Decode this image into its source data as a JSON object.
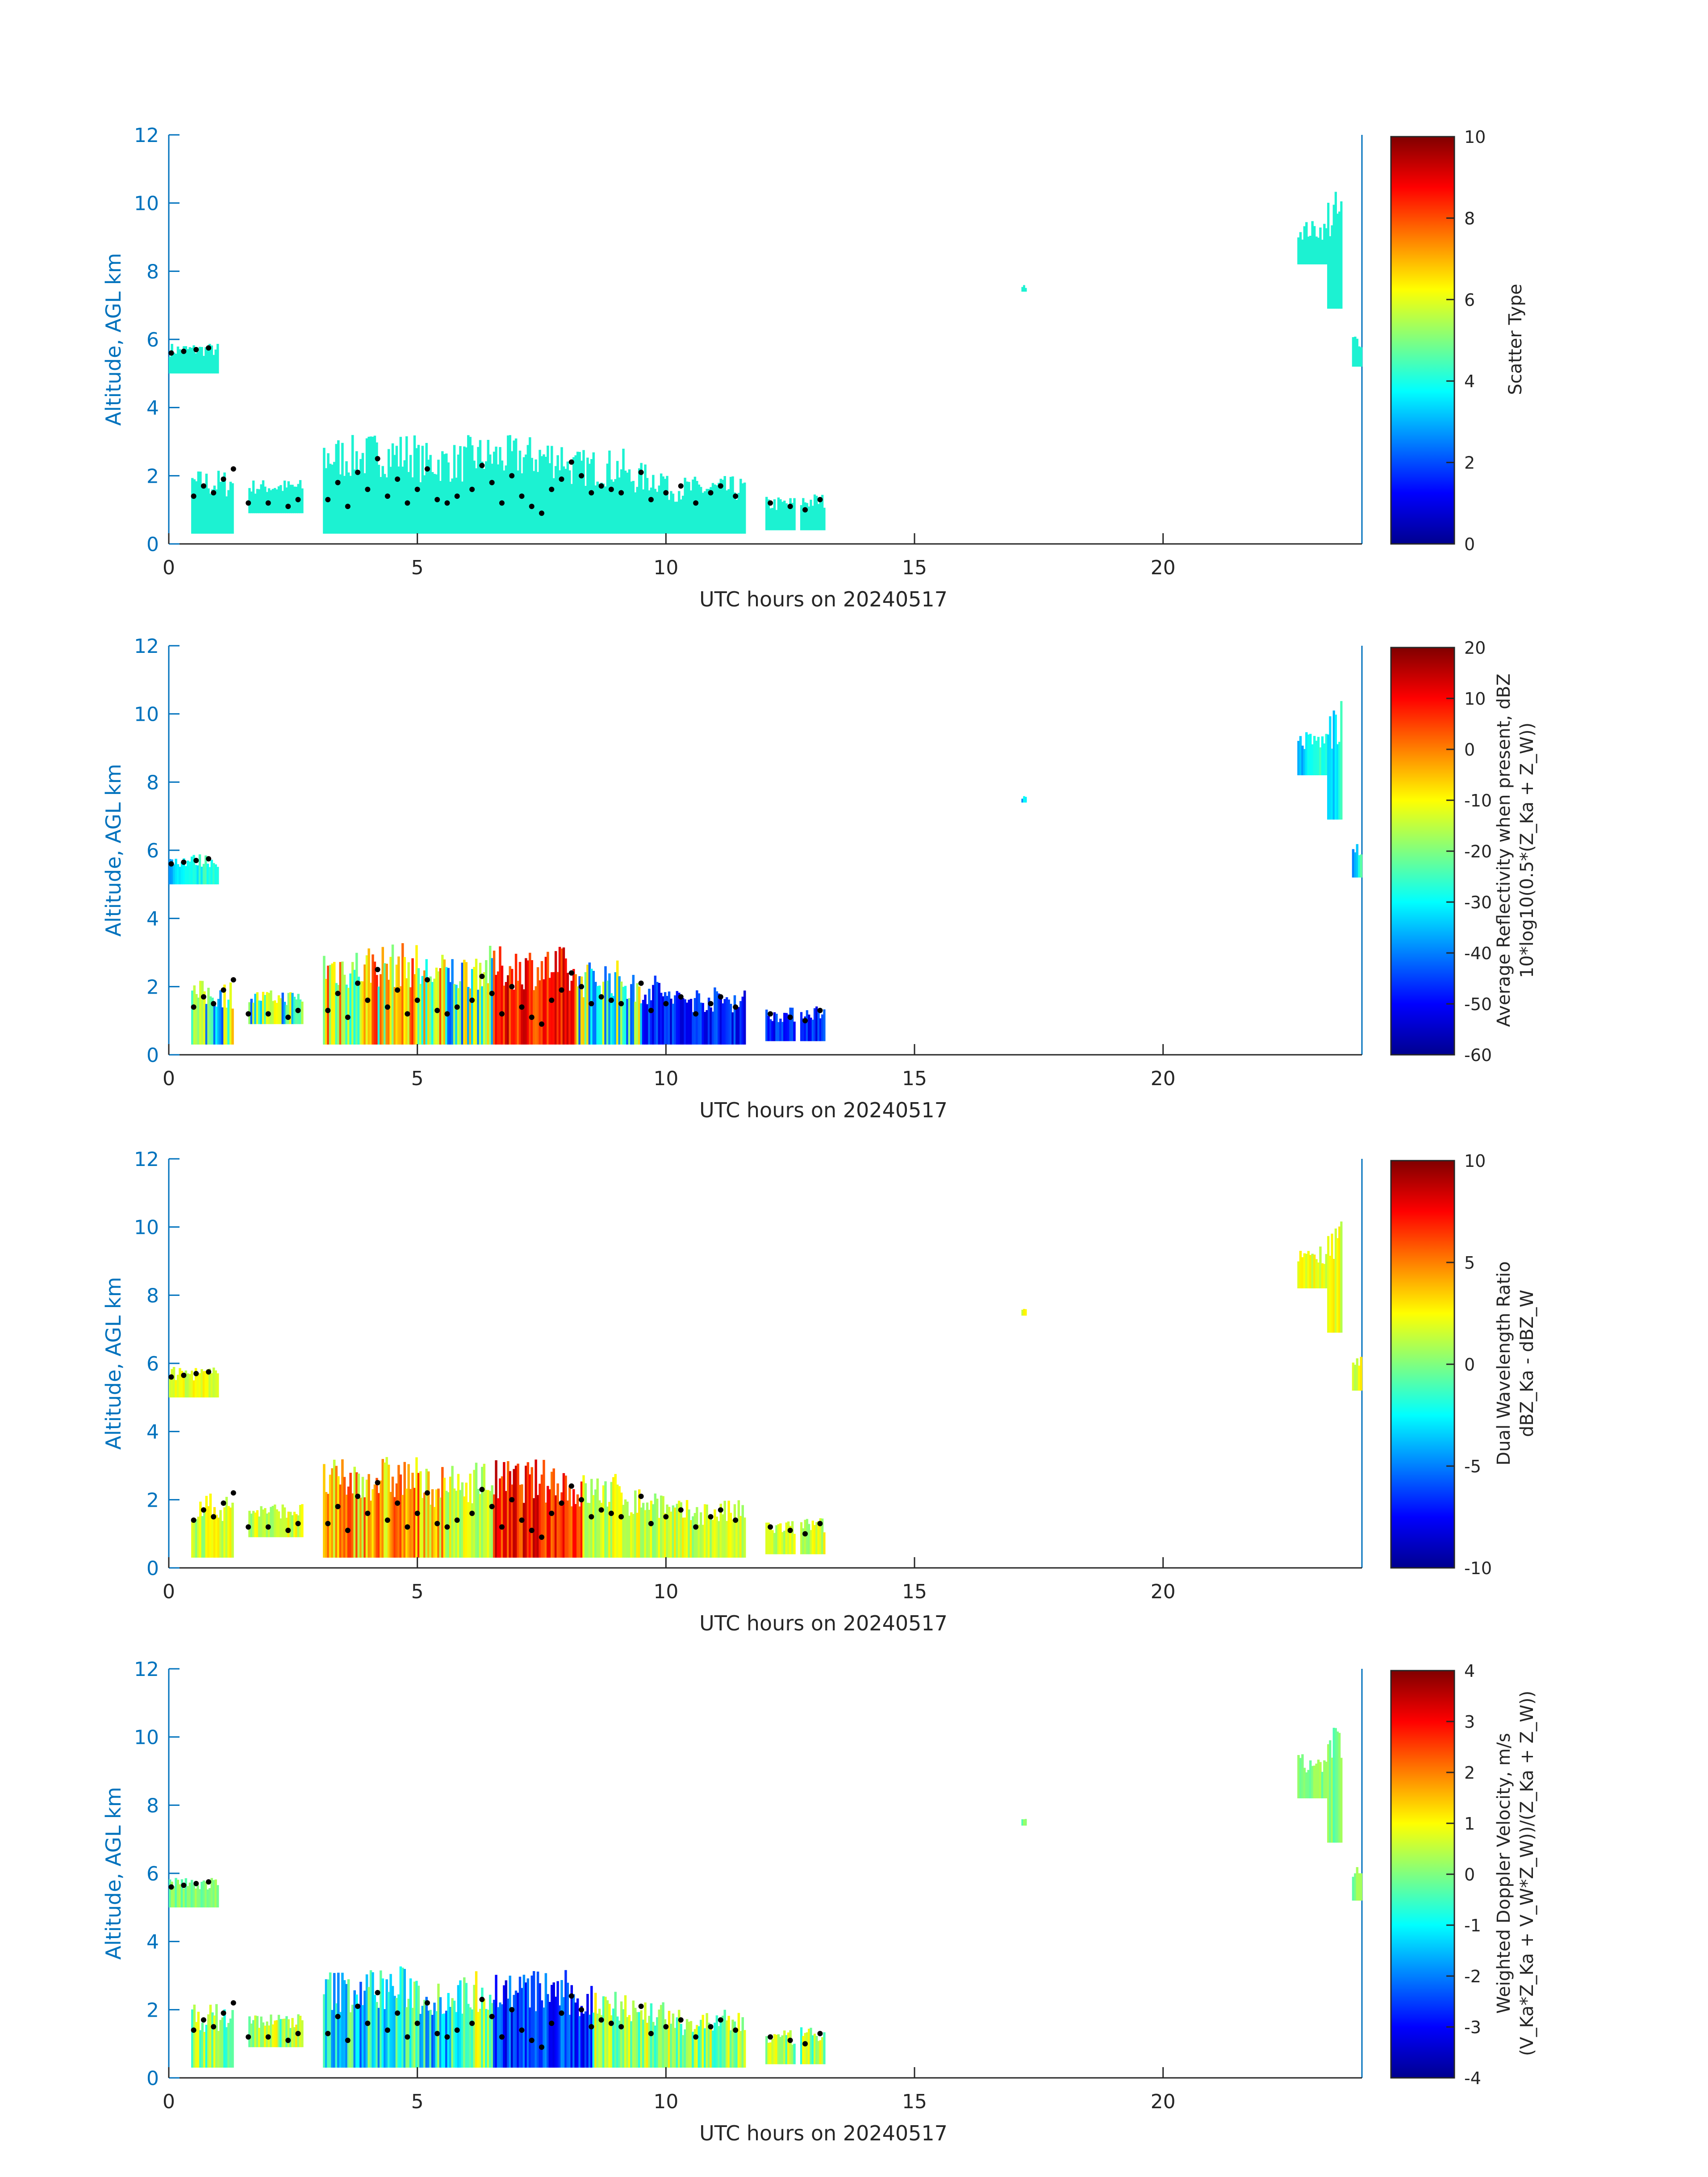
{
  "colors": {
    "axis_blue": "#0072BD",
    "axis_text": "#262626",
    "scatter_type_cloud": "#1CF2D2",
    "scatter_type_precip": "#E8501A",
    "mlh_points": "#000000"
  },
  "chart_data": [
    {
      "type": "heatmap",
      "name": "scatter-type",
      "xlabel": "UTC hours on 20240517",
      "ylabel": "Altitude, AGL km",
      "xlim": [
        0,
        24
      ],
      "ylim": [
        0,
        12
      ],
      "xticks": [
        0,
        5,
        10,
        15,
        20
      ],
      "yticks": [
        0,
        2,
        4,
        6,
        8,
        10,
        12
      ],
      "colorbar": {
        "label": [
          "Scatter Type"
        ],
        "colormap": "jet",
        "clim": [
          0,
          10
        ],
        "ticks": [
          0,
          2,
          4,
          6,
          8,
          10
        ]
      }
    },
    {
      "type": "heatmap",
      "name": "average-reflectivity",
      "xlabel": "UTC hours on 20240517",
      "ylabel": "Altitude, AGL km",
      "xlim": [
        0,
        24
      ],
      "ylim": [
        0,
        12
      ],
      "xticks": [
        0,
        5,
        10,
        15,
        20
      ],
      "yticks": [
        0,
        2,
        4,
        6,
        8,
        10,
        12
      ],
      "colorbar": {
        "label": [
          "Average Reflectivity when present, dBZ",
          "10*log10(0.5*(Z_Ka + Z_W))"
        ],
        "colormap": "jet",
        "clim": [
          -60,
          20
        ],
        "ticks": [
          -60,
          -50,
          -40,
          -30,
          -20,
          -10,
          0,
          10,
          20
        ]
      }
    },
    {
      "type": "heatmap",
      "name": "dual-wavelength-ratio",
      "xlabel": "UTC hours on 20240517",
      "ylabel": "Altitude, AGL km",
      "xlim": [
        0,
        24
      ],
      "ylim": [
        0,
        12
      ],
      "xticks": [
        0,
        5,
        10,
        15,
        20
      ],
      "yticks": [
        0,
        2,
        4,
        6,
        8,
        10,
        12
      ],
      "colorbar": {
        "label": [
          "Dual Wavelength Ratio",
          "dBZ_Ka - dBZ_W"
        ],
        "colormap": "jet",
        "clim": [
          -10,
          10
        ],
        "ticks": [
          -10,
          -5,
          0,
          5,
          10
        ]
      }
    },
    {
      "type": "heatmap",
      "name": "weighted-doppler-velocity",
      "xlabel": "UTC hours on 20240517",
      "ylabel": "Altitude, AGL km",
      "xlim": [
        0,
        24
      ],
      "ylim": [
        0,
        12
      ],
      "xticks": [
        0,
        5,
        10,
        15,
        20
      ],
      "yticks": [
        0,
        2,
        4,
        6,
        8,
        10,
        12
      ],
      "colorbar": {
        "label": [
          "Weighted Doppler Velocity, m/s",
          "(V_Ka*Z_Ka + V_W*Z_W))/(Z_Ka + Z_W))"
        ],
        "colormap": "jet",
        "clim": [
          -4,
          4
        ],
        "ticks": [
          -4,
          -3,
          -2,
          -1,
          0,
          1,
          2,
          3,
          4
        ]
      }
    }
  ],
  "observations": {
    "cloud_regions": [
      {
        "t0": 0.0,
        "t1": 1.0,
        "z0": 5.0,
        "z1": 5.9
      },
      {
        "t0": 0.45,
        "t1": 1.3,
        "z0": 0.3,
        "z1": 2.2
      },
      {
        "t0": 1.6,
        "t1": 2.7,
        "z0": 0.9,
        "z1": 1.9
      },
      {
        "t0": 3.1,
        "t1": 4.0,
        "z0": 0.3,
        "z1": 3.2
      },
      {
        "t0": 4.0,
        "t1": 5.0,
        "z0": 0.3,
        "z1": 3.3
      },
      {
        "t0": 5.0,
        "t1": 6.0,
        "z0": 0.3,
        "z1": 3.0
      },
      {
        "t0": 6.0,
        "t1": 8.0,
        "z0": 0.3,
        "z1": 3.2
      },
      {
        "t0": 8.0,
        "t1": 9.2,
        "z0": 0.3,
        "z1": 2.8
      },
      {
        "t0": 9.2,
        "t1": 10.0,
        "z0": 0.3,
        "z1": 2.4
      },
      {
        "t0": 10.0,
        "t1": 11.6,
        "z0": 0.3,
        "z1": 2.0
      },
      {
        "t0": 12.0,
        "t1": 12.6,
        "z0": 0.4,
        "z1": 1.4
      },
      {
        "t0": 12.7,
        "t1": 13.2,
        "z0": 0.4,
        "z1": 1.5
      },
      {
        "t0": 17.15,
        "t1": 17.25,
        "z0": 7.4,
        "z1": 7.6
      },
      {
        "t0": 22.7,
        "t1": 23.3,
        "z0": 8.2,
        "z1": 9.5
      },
      {
        "t0": 23.3,
        "t1": 23.6,
        "z0": 6.9,
        "z1": 10.4
      },
      {
        "t0": 23.8,
        "t1": 24.0,
        "z0": 5.2,
        "z1": 6.2
      }
    ],
    "mixed_layer_height": [
      {
        "t": 0.05,
        "z": 5.6
      },
      {
        "t": 0.3,
        "z": 5.65
      },
      {
        "t": 0.55,
        "z": 5.7
      },
      {
        "t": 0.8,
        "z": 5.75
      },
      {
        "t": 0.5,
        "z": 1.4
      },
      {
        "t": 0.7,
        "z": 1.7
      },
      {
        "t": 0.9,
        "z": 1.5
      },
      {
        "t": 1.1,
        "z": 1.9
      },
      {
        "t": 1.3,
        "z": 2.2
      },
      {
        "t": 1.6,
        "z": 1.2
      },
      {
        "t": 2.0,
        "z": 1.2
      },
      {
        "t": 2.4,
        "z": 1.1
      },
      {
        "t": 2.6,
        "z": 1.3
      },
      {
        "t": 3.2,
        "z": 1.3
      },
      {
        "t": 3.4,
        "z": 1.8
      },
      {
        "t": 3.6,
        "z": 1.1
      },
      {
        "t": 3.8,
        "z": 2.1
      },
      {
        "t": 4.0,
        "z": 1.6
      },
      {
        "t": 4.2,
        "z": 2.5
      },
      {
        "t": 4.4,
        "z": 1.4
      },
      {
        "t": 4.6,
        "z": 1.9
      },
      {
        "t": 4.8,
        "z": 1.2
      },
      {
        "t": 5.0,
        "z": 1.6
      },
      {
        "t": 5.2,
        "z": 2.2
      },
      {
        "t": 5.4,
        "z": 1.3
      },
      {
        "t": 5.6,
        "z": 1.2
      },
      {
        "t": 5.8,
        "z": 1.4
      },
      {
        "t": 6.1,
        "z": 1.6
      },
      {
        "t": 6.3,
        "z": 2.3
      },
      {
        "t": 6.5,
        "z": 1.8
      },
      {
        "t": 6.7,
        "z": 1.2
      },
      {
        "t": 6.9,
        "z": 2.0
      },
      {
        "t": 7.1,
        "z": 1.4
      },
      {
        "t": 7.3,
        "z": 1.1
      },
      {
        "t": 7.5,
        "z": 0.9
      },
      {
        "t": 7.7,
        "z": 1.6
      },
      {
        "t": 7.9,
        "z": 1.9
      },
      {
        "t": 8.1,
        "z": 2.4
      },
      {
        "t": 8.3,
        "z": 2.0
      },
      {
        "t": 8.5,
        "z": 1.5
      },
      {
        "t": 8.7,
        "z": 1.7
      },
      {
        "t": 8.9,
        "z": 1.6
      },
      {
        "t": 9.1,
        "z": 1.5
      },
      {
        "t": 9.5,
        "z": 2.1
      },
      {
        "t": 9.7,
        "z": 1.3
      },
      {
        "t": 10.0,
        "z": 1.5
      },
      {
        "t": 10.3,
        "z": 1.7
      },
      {
        "t": 10.6,
        "z": 1.2
      },
      {
        "t": 10.9,
        "z": 1.5
      },
      {
        "t": 11.1,
        "z": 1.7
      },
      {
        "t": 11.4,
        "z": 1.4
      },
      {
        "t": 12.1,
        "z": 1.2
      },
      {
        "t": 12.5,
        "z": 1.1
      },
      {
        "t": 12.8,
        "z": 1.0
      },
      {
        "t": 13.1,
        "z": 1.3
      }
    ]
  }
}
